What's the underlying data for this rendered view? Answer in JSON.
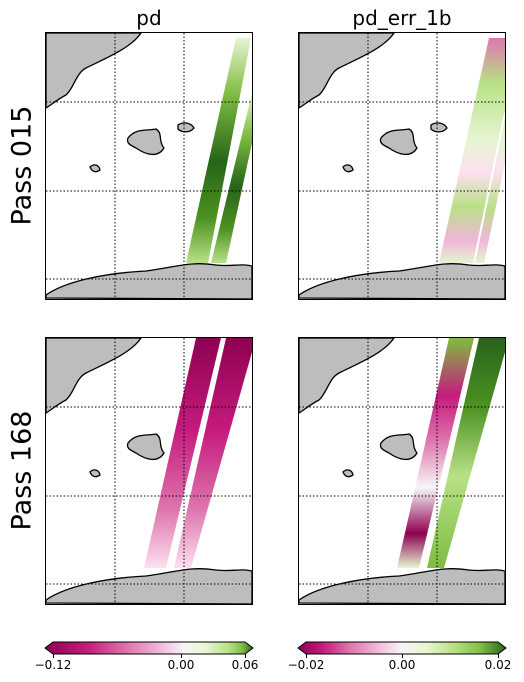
{
  "columns": [
    {
      "title": "pd"
    },
    {
      "title": "pd_err_1b"
    }
  ],
  "rows": [
    {
      "label": "Pass 015"
    },
    {
      "label": "Pass 168"
    }
  ],
  "colorbars": [
    {
      "ticks": [
        "−0.12",
        "0.00",
        "0.06"
      ],
      "min": -0.12,
      "max": 0.06,
      "colormap": "PiYG"
    },
    {
      "ticks": [
        "−0.02",
        "0.00",
        "0.02"
      ],
      "min": -0.02,
      "max": 0.02,
      "colormap": "PiYG"
    }
  ],
  "colors": {
    "land": "#bdbdbd",
    "pink_dark": "#8e0152",
    "pink_mid": "#de77ae",
    "pink_light": "#fde0ef",
    "neutral": "#f7f7f7",
    "green_light": "#e6f5d0",
    "green_mid": "#7fbc41",
    "green_dark": "#276419"
  }
}
